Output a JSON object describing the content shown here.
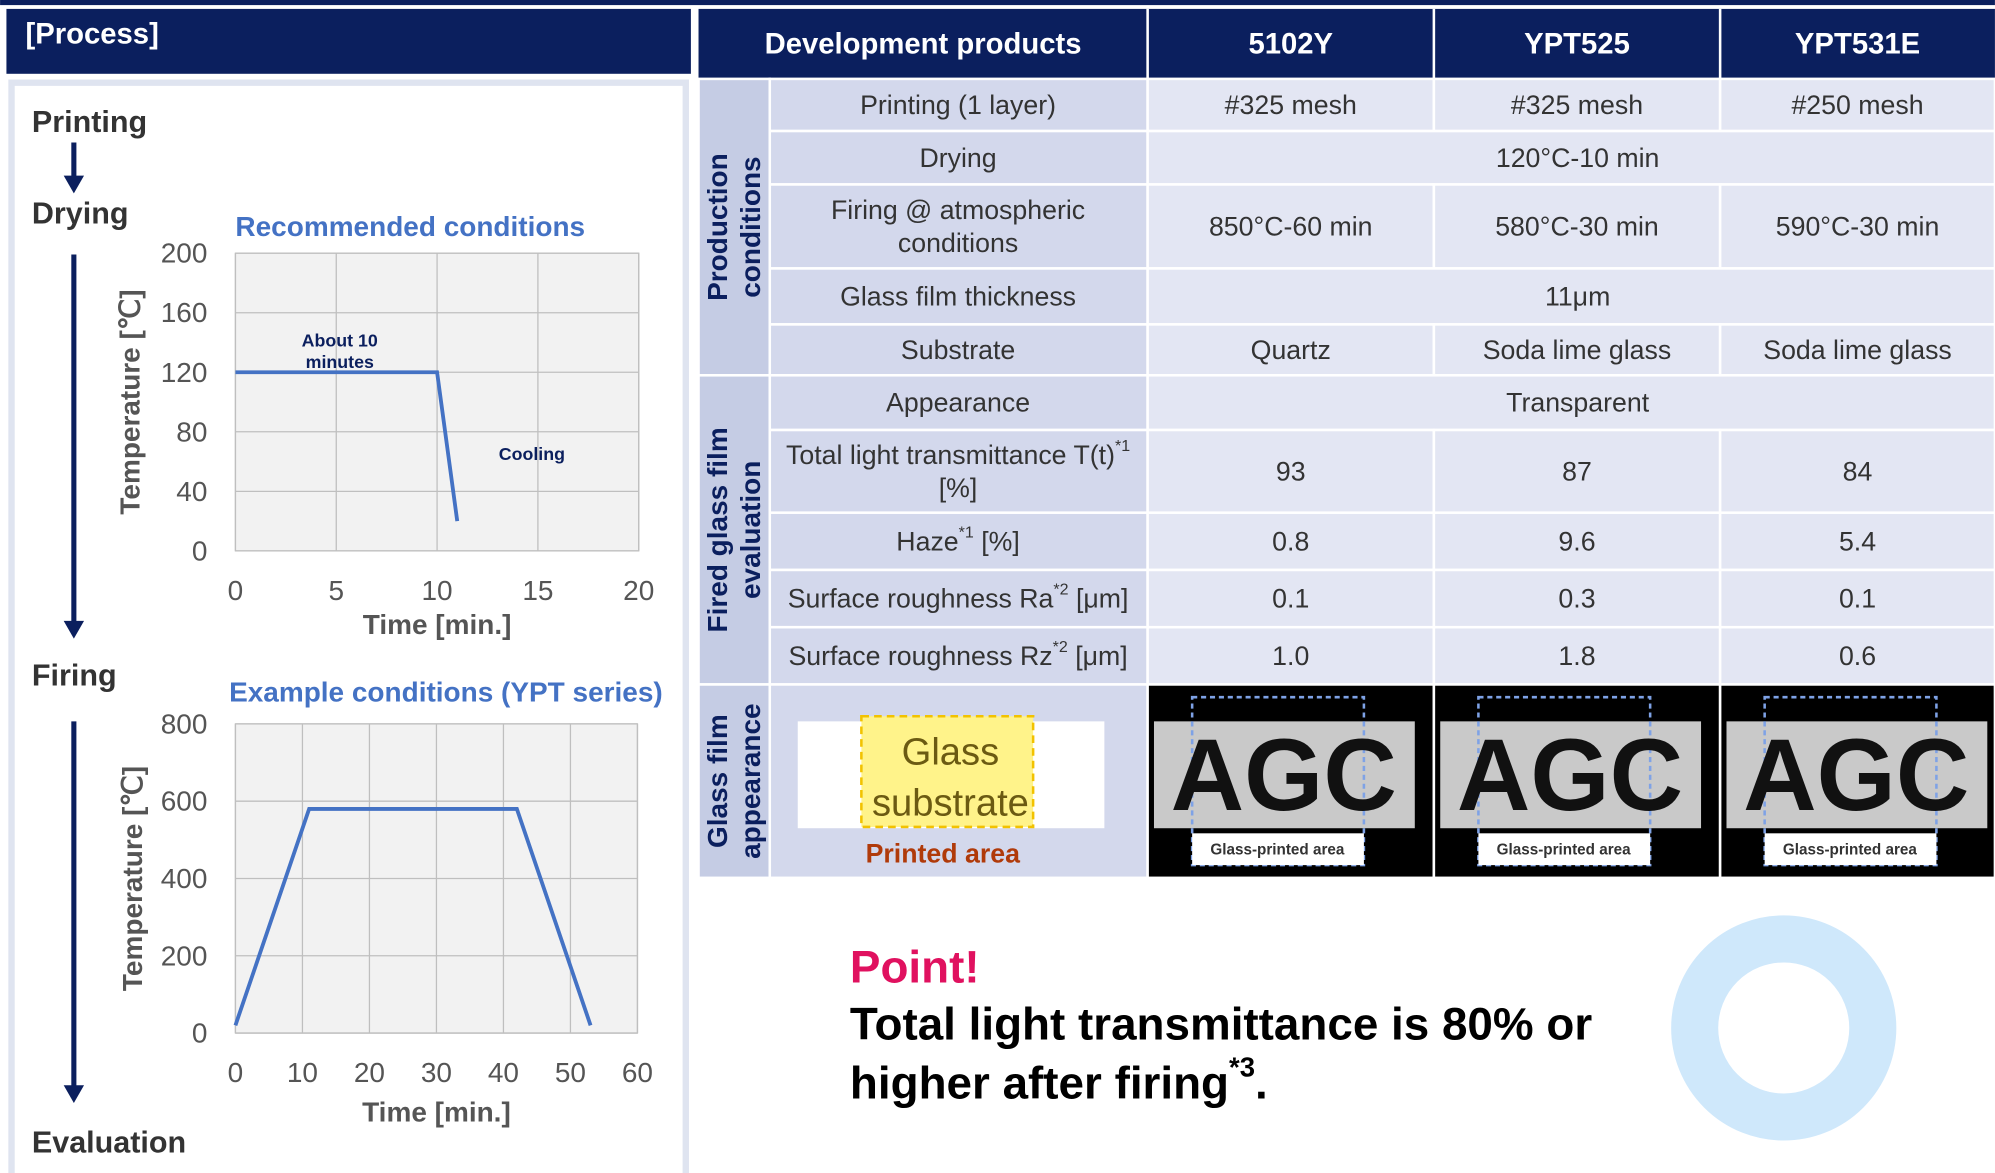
{
  "header": {
    "process": "[Process]"
  },
  "process_steps": [
    "Printing",
    "Drying",
    "Firing",
    "Evaluation"
  ],
  "chart_data": [
    {
      "type": "line",
      "title": "Recommended conditions",
      "x": [
        0,
        10,
        11
      ],
      "values": [
        120,
        120,
        20
      ],
      "color": "#4472c4",
      "xlabel": "Time [min.]",
      "ylabel": "Temperature [℃]",
      "xlim": [
        0,
        20
      ],
      "xticks": [
        0,
        5,
        10,
        15,
        20
      ],
      "ylim": [
        0,
        200
      ],
      "yticks": [
        0,
        40,
        80,
        120,
        160,
        200
      ],
      "grid": true,
      "annotations": [
        [
          "About 10",
          "minutes"
        ],
        [
          "Cooling"
        ]
      ]
    },
    {
      "type": "line",
      "title": "Example conditions (YPT series)",
      "x": [
        0,
        11,
        42,
        53
      ],
      "values": [
        20,
        580,
        580,
        20
      ],
      "color": "#4472c4",
      "xlabel": "Time [min.]",
      "ylabel": "Temperature [℃]",
      "xlim": [
        0,
        60
      ],
      "xticks": [
        0,
        10,
        20,
        30,
        40,
        50,
        60
      ],
      "ylim": [
        0,
        800
      ],
      "yticks": [
        0,
        200,
        400,
        600,
        800
      ],
      "grid": true,
      "annotations": []
    }
  ],
  "table": {
    "header": [
      "Development products",
      "5102Y",
      "YPT525",
      "YPT531E"
    ],
    "groups": [
      {
        "label": [
          "Production",
          "conditions"
        ],
        "rows": [
          {
            "label": "Printing (1 layer)",
            "cells": [
              "#325 mesh",
              "#325 mesh",
              "#250 mesh"
            ]
          },
          {
            "label": "Drying",
            "cells": [
              "120°C-10 min"
            ]
          },
          {
            "label": [
              "Firing @ atmospheric",
              "conditions"
            ],
            "cells": [
              "850°C-60 min",
              "580°C-30 min",
              "590°C-30 min"
            ]
          },
          {
            "label": "Glass film thickness",
            "cells": [
              "11μm"
            ]
          },
          {
            "label": "Substrate",
            "cells": [
              "Quartz",
              "Soda lime glass",
              "Soda lime glass"
            ]
          }
        ]
      },
      {
        "label": [
          "Fired glass film",
          "evaluation"
        ],
        "rows": [
          {
            "label": "Appearance",
            "cells": [
              "Transparent"
            ]
          },
          {
            "label": [
              [
                {
                  "text": "Total light transmittance T(t)"
                },
                {
                  "sup": "*1"
                }
              ],
              "[%]"
            ],
            "cells": [
              "93",
              "87",
              "84"
            ]
          },
          {
            "label": [
              [
                {
                  "text": "Haze"
                },
                {
                  "sup": "*1"
                },
                {
                  "text": " [%]"
                }
              ]
            ],
            "cells": [
              "0.8",
              "9.6",
              "5.4"
            ]
          },
          {
            "label": [
              [
                {
                  "text": "Surface roughness Ra"
                },
                {
                  "sup": "*2"
                },
                {
                  "text": " [μm]"
                }
              ]
            ],
            "cells": [
              "0.1",
              "0.3",
              "0.1"
            ]
          },
          {
            "label": [
              [
                {
                  "text": "Surface roughness Rz"
                },
                {
                  "sup": "*2"
                },
                {
                  "text": " [μm]"
                }
              ]
            ],
            "cells": [
              "1.0",
              "1.8",
              "0.6"
            ]
          }
        ]
      }
    ],
    "appearance": {
      "group": [
        "Glass film",
        "appearance"
      ],
      "sample": {
        "lines": [
          "Glass",
          "substrate"
        ],
        "caption": "Printed area"
      },
      "photos": [
        {
          "logo": "AGC",
          "caption": "Glass-printed area"
        },
        {
          "logo": "AGC",
          "caption": "Glass-printed area"
        },
        {
          "logo": "AGC",
          "caption": "Glass-printed area"
        }
      ]
    }
  },
  "point": {
    "title": "Point!",
    "lines": [
      "Total light transmittance is 80% or",
      [
        {
          "text": "higher after firing"
        },
        {
          "sup": "*3"
        },
        {
          "text": "."
        }
      ]
    ]
  }
}
